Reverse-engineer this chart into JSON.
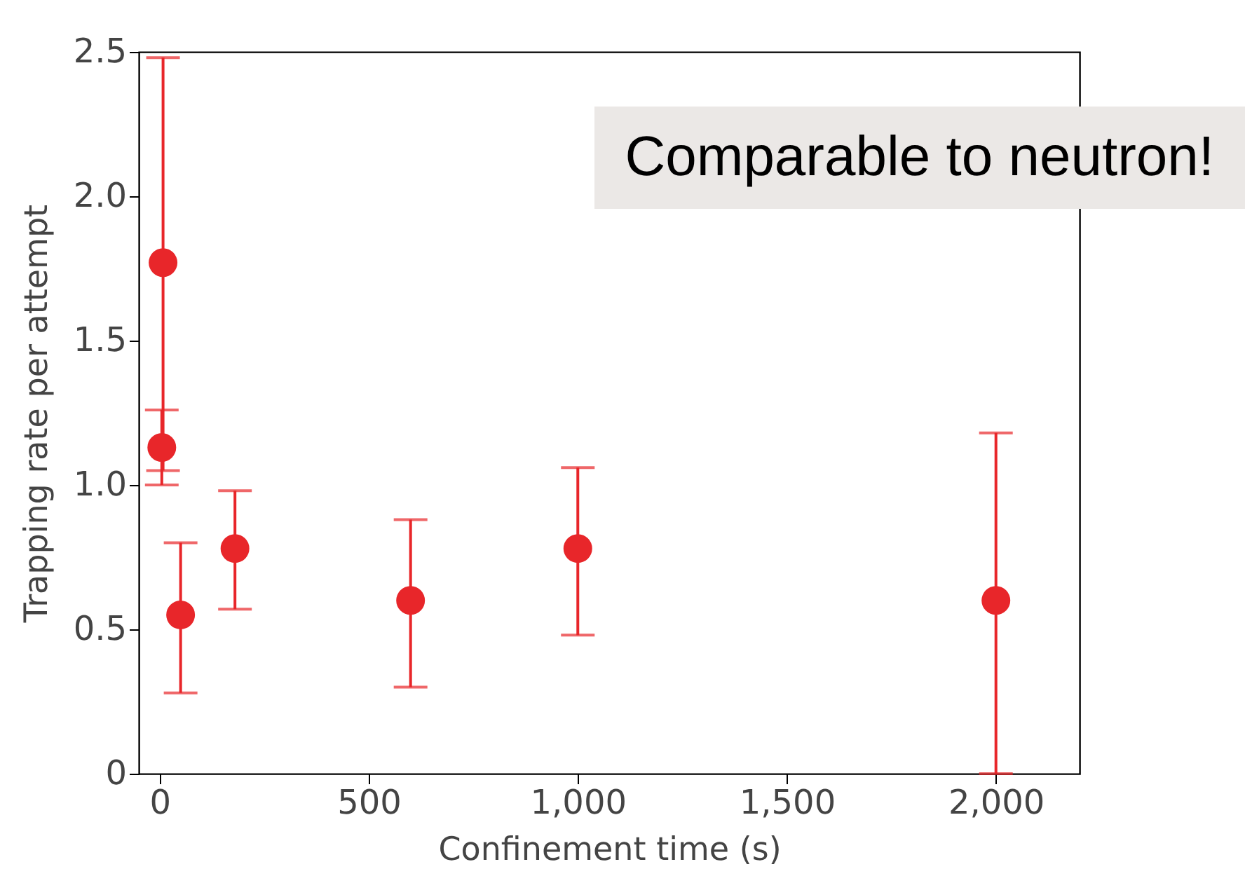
{
  "chart_data": {
    "type": "scatter",
    "xlabel": "Confinement time (s)",
    "ylabel": "Trapping rate per attempt",
    "x": [
      8,
      5,
      50,
      180,
      600,
      1000,
      2000
    ],
    "series": [
      {
        "color": "#e8262a",
        "values": [
          1.77,
          1.13,
          0.55,
          0.78,
          0.6,
          0.78,
          0.6
        ],
        "errors": [
          [
            1.05,
            2.48
          ],
          [
            1.0,
            1.26
          ],
          [
            0.28,
            0.8
          ],
          [
            0.57,
            0.98
          ],
          [
            0.3,
            0.88
          ],
          [
            0.48,
            1.06
          ],
          [
            0,
            1.18
          ]
        ]
      }
    ],
    "xlim": [
      -50,
      2200
    ],
    "ylim": [
      0,
      2.5
    ],
    "xticks": [
      0,
      500,
      {
        "value": 1000,
        "label": "1,000"
      },
      {
        "value": 1500,
        "label": "1,500"
      },
      {
        "value": 2000,
        "label": "2,000"
      }
    ],
    "yticks": [
      0,
      0.5,
      {
        "value": 1,
        "label": "1.0"
      },
      1.5,
      {
        "value": 2,
        "label": "2.0"
      },
      2.5
    ],
    "marker": "circle",
    "grid": false,
    "annotations": [
      "Comparable to neutron!"
    ]
  }
}
